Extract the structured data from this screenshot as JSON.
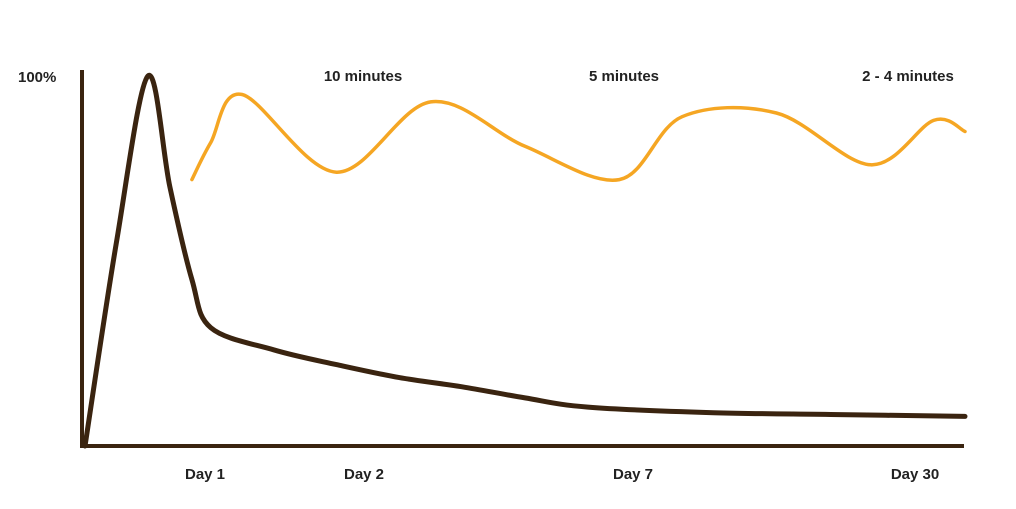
{
  "chart_data": {
    "type": "line",
    "ylabel_top": "100%",
    "x_ticks": [
      "Day 1",
      "Day 2",
      "Day 7",
      "Day 30"
    ],
    "annotations": [
      "10 minutes",
      "5 minutes",
      "2 - 4 minutes"
    ],
    "series": [
      {
        "color": "#3a2410",
        "points": [
          [
            0,
            0
          ],
          [
            0.5,
            55
          ],
          [
            1,
            100
          ],
          [
            1.35,
            70
          ],
          [
            1.7,
            45
          ],
          [
            2,
            32
          ],
          [
            3,
            26
          ],
          [
            4,
            22
          ],
          [
            5,
            18.5
          ],
          [
            6,
            16
          ],
          [
            7,
            13
          ],
          [
            8,
            10.5
          ],
          [
            10,
            9
          ],
          [
            12,
            8.5
          ],
          [
            14,
            8
          ]
        ]
      },
      {
        "color": "#f5a623",
        "points": [
          [
            1.7,
            72
          ],
          [
            2,
            82
          ],
          [
            2.5,
            95
          ],
          [
            4,
            74
          ],
          [
            5.5,
            93
          ],
          [
            7,
            81
          ],
          [
            8.5,
            72
          ],
          [
            9.5,
            89
          ],
          [
            11,
            90
          ],
          [
            12.5,
            76
          ],
          [
            13.5,
            88
          ],
          [
            14,
            85
          ]
        ]
      }
    ],
    "ylim": [
      0,
      100
    ],
    "grid": false
  }
}
